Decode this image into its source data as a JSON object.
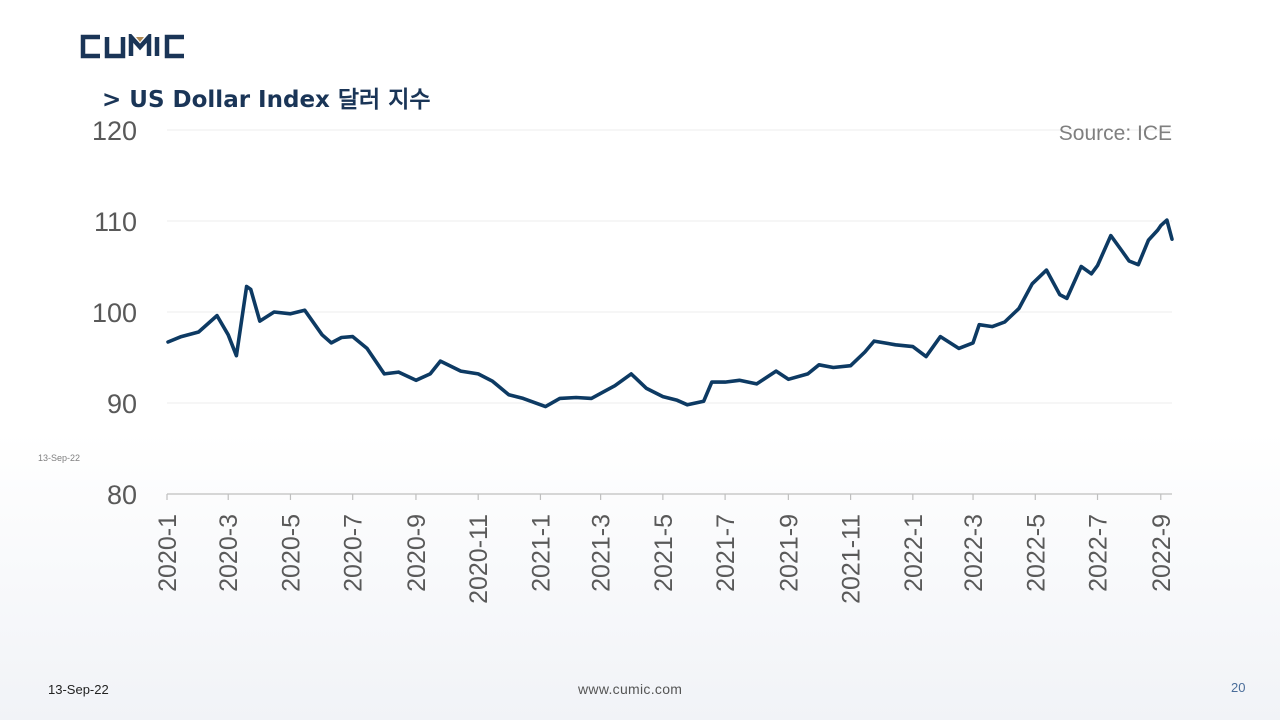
{
  "brand": {
    "logo_text": "CUMIC",
    "logo_color": "#1a3557",
    "logo_accent": "#b08a55"
  },
  "slide": {
    "title": "> US Dollar Index 달러 지수",
    "side_date": "13-Sep-22",
    "footer_date": "13-Sep-22",
    "footer_url": "www.cumic.com",
    "page_number": "20"
  },
  "chart_data": {
    "type": "line",
    "title": "",
    "source_note": "Source:  ICE",
    "xlabel": "",
    "ylabel": "",
    "ylim": [
      80,
      120
    ],
    "yticks": [
      80,
      90,
      100,
      110,
      120
    ],
    "grid": true,
    "line_color": "#0d3a63",
    "x_tick_labels": [
      "2020-1",
      "2020-3",
      "2020-5",
      "2020-7",
      "2020-9",
      "2020-11",
      "2021-1",
      "2021-3",
      "2021-5",
      "2021-7",
      "2021-9",
      "2021-11",
      "2022-1",
      "2022-3",
      "2022-5",
      "2022-7",
      "2022-9"
    ],
    "series": [
      {
        "name": "",
        "x": [
          "2020-01-02",
          "2020-01-15",
          "2020-02-01",
          "2020-02-19",
          "2020-03-01",
          "2020-03-09",
          "2020-03-19",
          "2020-03-23",
          "2020-04-01",
          "2020-04-15",
          "2020-05-01",
          "2020-05-15",
          "2020-06-01",
          "2020-06-10",
          "2020-06-20",
          "2020-07-01",
          "2020-07-15",
          "2020-08-01",
          "2020-08-15",
          "2020-09-01",
          "2020-09-15",
          "2020-09-25",
          "2020-10-15",
          "2020-11-01",
          "2020-11-15",
          "2020-12-01",
          "2020-12-15",
          "2021-01-06",
          "2021-01-20",
          "2021-02-05",
          "2021-02-20",
          "2021-03-05",
          "2021-03-15",
          "2021-03-31",
          "2021-04-15",
          "2021-05-01",
          "2021-05-15",
          "2021-05-25",
          "2021-06-10",
          "2021-06-18",
          "2021-07-01",
          "2021-07-15",
          "2021-08-01",
          "2021-08-20",
          "2021-09-01",
          "2021-09-20",
          "2021-10-01",
          "2021-10-15",
          "2021-11-01",
          "2021-11-15",
          "2021-11-24",
          "2021-12-15",
          "2022-01-01",
          "2022-01-14",
          "2022-01-28",
          "2022-02-15",
          "2022-03-01",
          "2022-03-07",
          "2022-03-20",
          "2022-04-01",
          "2022-04-15",
          "2022-04-28",
          "2022-05-12",
          "2022-05-25",
          "2022-06-01",
          "2022-06-15",
          "2022-06-25",
          "2022-07-01",
          "2022-07-14",
          "2022-07-25",
          "2022-08-01",
          "2022-08-10",
          "2022-08-20",
          "2022-08-29",
          "2022-09-01",
          "2022-09-07",
          "2022-09-12"
        ],
        "values": [
          96.7,
          97.3,
          97.8,
          99.6,
          97.5,
          95.2,
          102.8,
          102.5,
          99.0,
          100.0,
          99.8,
          100.2,
          97.5,
          96.6,
          97.2,
          97.3,
          96.0,
          93.2,
          93.4,
          92.5,
          93.2,
          94.6,
          93.5,
          93.2,
          92.4,
          90.9,
          90.5,
          89.6,
          90.5,
          90.6,
          90.5,
          91.3,
          91.9,
          93.2,
          91.6,
          90.7,
          90.3,
          89.8,
          90.2,
          92.3,
          92.3,
          92.5,
          92.1,
          93.5,
          92.6,
          93.2,
          94.2,
          93.9,
          94.1,
          95.6,
          96.8,
          96.4,
          96.2,
          95.1,
          97.3,
          96.0,
          96.6,
          98.6,
          98.4,
          98.9,
          100.4,
          103.1,
          104.6,
          101.9,
          101.5,
          105.0,
          104.2,
          105.1,
          108.4,
          106.7,
          105.6,
          105.2,
          107.9,
          109.0,
          109.5,
          110.1,
          108.0
        ]
      }
    ]
  }
}
